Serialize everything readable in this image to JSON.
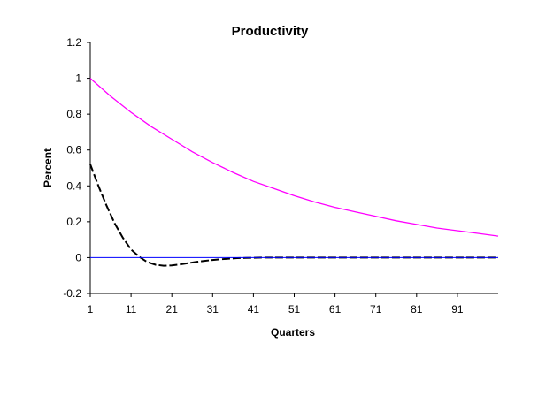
{
  "chart_data": {
    "type": "line",
    "title": "Productivity",
    "xlabel": "Quarters",
    "ylabel": "Percent",
    "xlim": [
      1,
      101
    ],
    "ylim": [
      -0.2,
      1.2
    ],
    "x_ticks": [
      1,
      11,
      21,
      31,
      41,
      51,
      61,
      71,
      81,
      91
    ],
    "y_ticks": [
      -0.2,
      0,
      0.2,
      0.4,
      0.6,
      0.8,
      1,
      1.2
    ],
    "y_tick_labels": [
      "-0.2",
      "0",
      "0.2",
      "0.4",
      "0.6",
      "0.8",
      "1",
      "1.2"
    ],
    "grid": false,
    "legend": "none",
    "series": [
      {
        "style": "solid",
        "color": "#ff00ff",
        "x": [
          1,
          6,
          11,
          16,
          21,
          26,
          31,
          36,
          41,
          46,
          51,
          56,
          61,
          66,
          71,
          76,
          81,
          86,
          91,
          96,
          101
        ],
        "y": [
          1.0,
          0.9,
          0.81,
          0.73,
          0.66,
          0.59,
          0.53,
          0.475,
          0.425,
          0.385,
          0.345,
          0.31,
          0.28,
          0.255,
          0.23,
          0.205,
          0.185,
          0.165,
          0.15,
          0.135,
          0.12
        ]
      },
      {
        "style": "dashed",
        "color": "#000000",
        "x": [
          1,
          3,
          5,
          7,
          9,
          11,
          13,
          15,
          17,
          19,
          21,
          23,
          25,
          27,
          29,
          31,
          33,
          35,
          37,
          39,
          41,
          43,
          45,
          50,
          55,
          60,
          70,
          80,
          90,
          101
        ],
        "y": [
          0.52,
          0.4,
          0.29,
          0.19,
          0.11,
          0.045,
          0.005,
          -0.025,
          -0.04,
          -0.045,
          -0.043,
          -0.038,
          -0.031,
          -0.024,
          -0.018,
          -0.013,
          -0.009,
          -0.006,
          -0.003,
          -0.002,
          -0.001,
          0,
          0,
          0,
          0,
          0,
          0,
          0,
          0,
          0
        ]
      },
      {
        "style": "solid",
        "color": "#0000ff",
        "x": [
          1,
          101
        ],
        "y": [
          0,
          0
        ]
      }
    ]
  }
}
